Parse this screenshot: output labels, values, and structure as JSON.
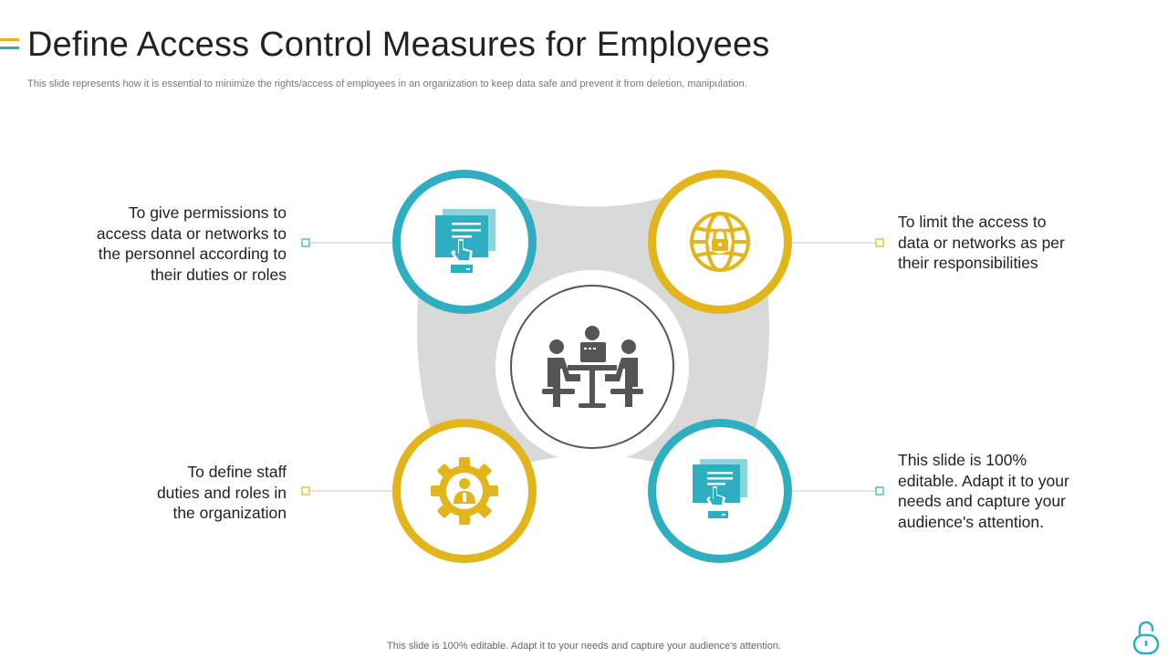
{
  "slide": {
    "title": "Define Access Control Measures for Employees",
    "subtitle": "This slide represents how it is essential to minimize the rights/access of employees in an organization to keep data safe and prevent it from deletion, manipulation.",
    "footer": "This slide is 100% editable. Adapt it to your needs and capture your audience's attention."
  },
  "colors": {
    "teal": "#2eaec0",
    "gold": "#e2b51c",
    "grey": "#d9d9d9",
    "center_icon": "#555555"
  },
  "center": {
    "icon": "meeting-table-icon"
  },
  "points": [
    {
      "position": "top-left",
      "icon": "document-touch-icon",
      "color": "teal",
      "lines": [
        "To give permissions to",
        "access data or networks to",
        "the personnel according to",
        "their duties or roles"
      ]
    },
    {
      "position": "top-right",
      "icon": "secure-globe-icon",
      "color": "gold",
      "lines": [
        "To limit the access to",
        "data or networks as per",
        "their responsibilities"
      ]
    },
    {
      "position": "bottom-left",
      "icon": "gear-person-icon",
      "color": "gold",
      "lines": [
        "To define staff",
        "duties and roles in",
        "the organization"
      ]
    },
    {
      "position": "bottom-right",
      "icon": "document-touch-icon",
      "color": "teal",
      "lines": [
        "This slide is 100%",
        "editable. Adapt it to your",
        "needs and capture your",
        "audience's attention."
      ]
    }
  ]
}
